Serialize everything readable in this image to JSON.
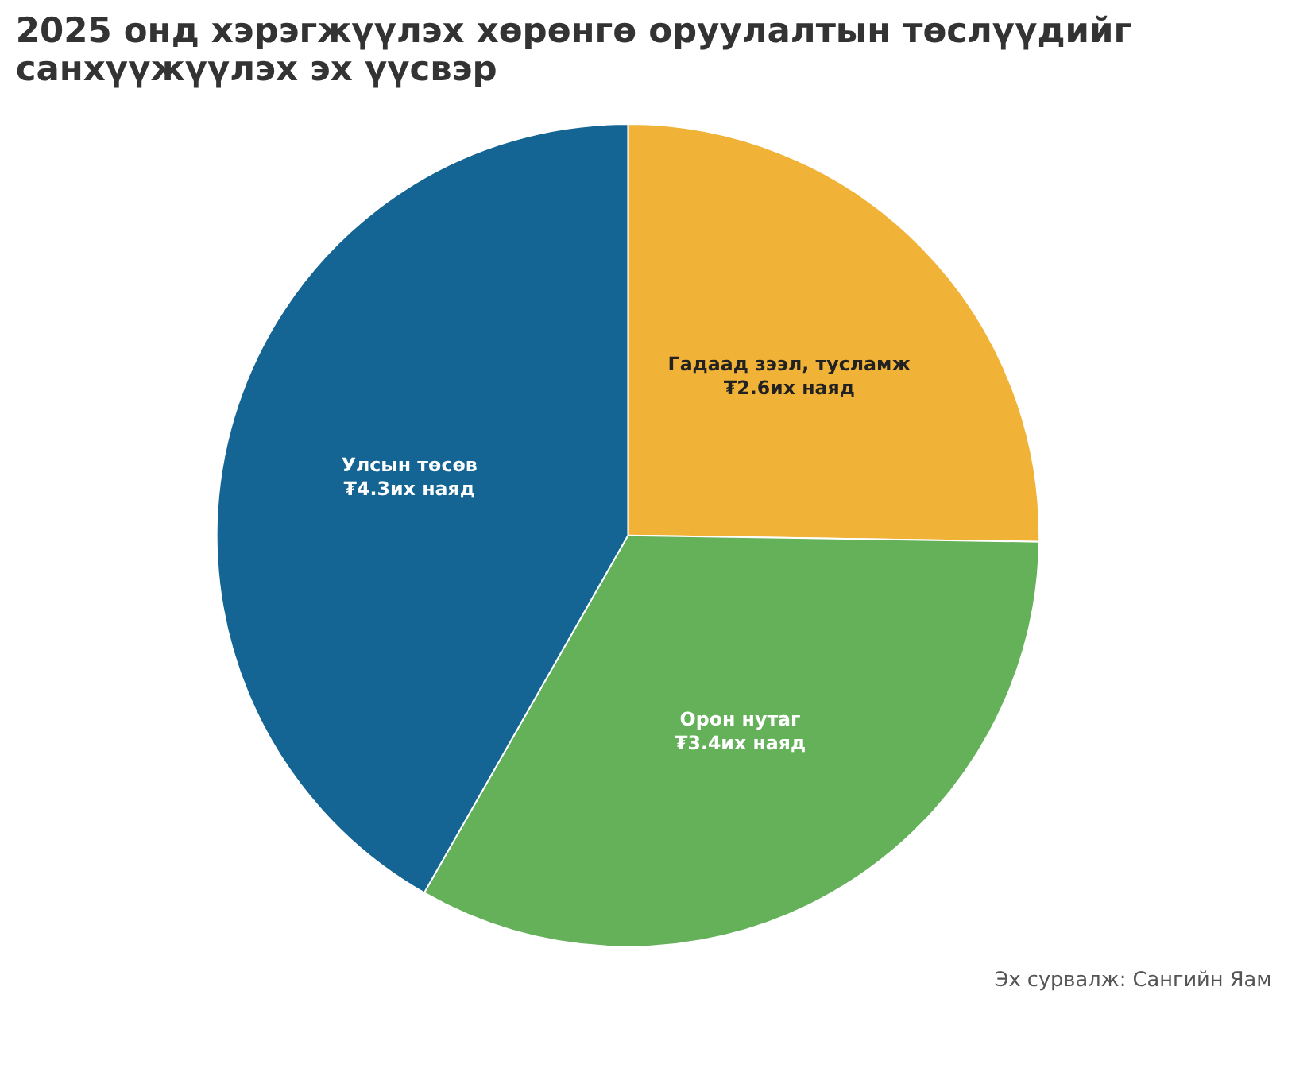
{
  "chart_data": {
    "type": "pie",
    "title": "2025 онд хэрэгжүүлэх хөрөнгө оруулалтын төслүүдийг санхүүжүүлэх эх үүсвэр",
    "categories": [
      "Гадаад зээл, тусламж",
      "Орон нутаг",
      "Улсын төсөв"
    ],
    "values": [
      2.6,
      3.4,
      4.3
    ],
    "value_labels": [
      "₮2.6их наяд",
      "₮3.4их наяд",
      "₮4.3их наяд"
    ],
    "colors": [
      "#f0b237",
      "#64b15a",
      "#156594"
    ],
    "legend": false,
    "annotations": [
      "Эх сурвалж: Сангийн Яам"
    ]
  }
}
